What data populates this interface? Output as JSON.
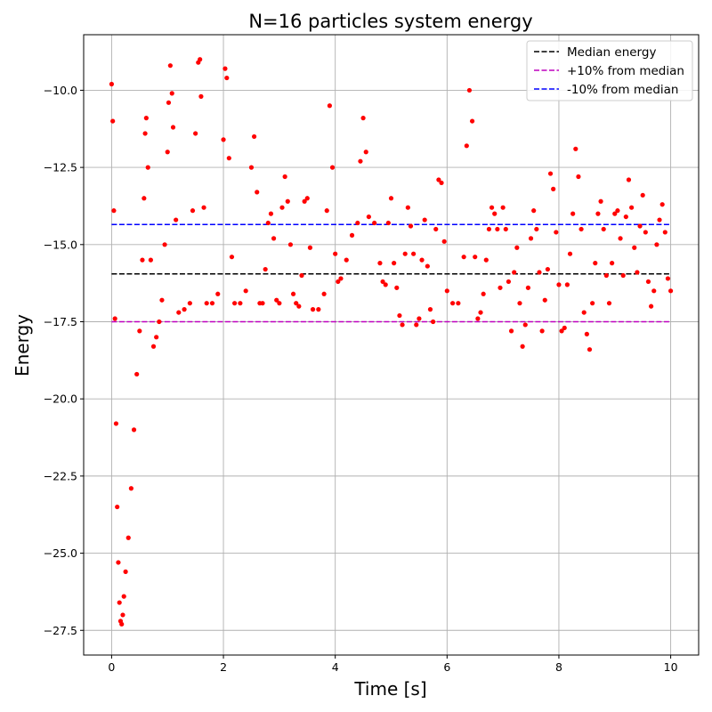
{
  "chart_data": {
    "type": "scatter",
    "title": "N=16 particles system energy",
    "xlabel": "Time [s]",
    "ylabel": "Energy",
    "xlim": [
      -0.5,
      10.5
    ],
    "ylim": [
      -28.3,
      -8.2
    ],
    "xticks": [
      0,
      2,
      4,
      6,
      8,
      10
    ],
    "yticks": [
      -27.5,
      -25.0,
      -22.5,
      -20.0,
      -17.5,
      -15.0,
      -12.5,
      -10.0
    ],
    "xtick_labels": [
      "0",
      "2",
      "4",
      "6",
      "8",
      "10"
    ],
    "ytick_labels": [
      "−27.5",
      "−25.0",
      "−22.5",
      "−20.0",
      "−17.5",
      "−15.0",
      "−12.5",
      "−10.0"
    ],
    "grid": true,
    "legend_position": "top-right",
    "points_color": "#ff0000",
    "series": [
      {
        "name": "",
        "kind": "points",
        "color": "#ff0000",
        "x": [
          0.0,
          0.02,
          0.04,
          0.06,
          0.08,
          0.1,
          0.12,
          0.14,
          0.16,
          0.18,
          0.2,
          0.22,
          0.25,
          0.3,
          0.35,
          0.4,
          0.45,
          0.5,
          0.55,
          0.58,
          0.6,
          0.62,
          0.65,
          0.7,
          0.75,
          0.8,
          0.85,
          0.9,
          0.95,
          1.0,
          1.02,
          1.05,
          1.08,
          1.1,
          1.15,
          1.2,
          1.3,
          1.4,
          1.45,
          1.5,
          1.55,
          1.58,
          1.6,
          1.65,
          1.7,
          1.8,
          1.9,
          2.0,
          2.03,
          2.06,
          2.1,
          2.15,
          2.2,
          2.3,
          2.4,
          2.5,
          2.55,
          2.6,
          2.65,
          2.7,
          2.75,
          2.8,
          2.85,
          2.9,
          2.95,
          3.0,
          3.05,
          3.1,
          3.15,
          3.2,
          3.25,
          3.3,
          3.35,
          3.4,
          3.45,
          3.5,
          3.55,
          3.6,
          3.7,
          3.8,
          3.85,
          3.9,
          3.95,
          4.0,
          4.05,
          4.1,
          4.2,
          4.3,
          4.4,
          4.45,
          4.5,
          4.55,
          4.6,
          4.7,
          4.8,
          4.85,
          4.9,
          4.95,
          5.0,
          5.05,
          5.1,
          5.15,
          5.2,
          5.25,
          5.3,
          5.35,
          5.4,
          5.45,
          5.5,
          5.55,
          5.6,
          5.65,
          5.7,
          5.75,
          5.8,
          5.85,
          5.9,
          5.95,
          6.0,
          6.1,
          6.2,
          6.3,
          6.35,
          6.4,
          6.45,
          6.5,
          6.55,
          6.6,
          6.65,
          6.7,
          6.75,
          6.8,
          6.85,
          6.9,
          6.95,
          7.0,
          7.05,
          7.1,
          7.15,
          7.2,
          7.25,
          7.3,
          7.35,
          7.4,
          7.45,
          7.5,
          7.55,
          7.6,
          7.65,
          7.7,
          7.75,
          7.8,
          7.85,
          7.9,
          7.95,
          8.0,
          8.05,
          8.1,
          8.15,
          8.2,
          8.25,
          8.3,
          8.35,
          8.4,
          8.45,
          8.5,
          8.55,
          8.6,
          8.65,
          8.7,
          8.75,
          8.8,
          8.85,
          8.9,
          8.95,
          9.0,
          9.05,
          9.1,
          9.15,
          9.2,
          9.25,
          9.3,
          9.35,
          9.4,
          9.45,
          9.5,
          9.55,
          9.6,
          9.65,
          9.7,
          9.75,
          9.8,
          9.85,
          9.9,
          9.95,
          10.0
        ],
        "y": [
          -9.8,
          -11.0,
          -13.9,
          -17.4,
          -20.8,
          -23.5,
          -25.3,
          -26.6,
          -27.2,
          -27.3,
          -27.0,
          -26.4,
          -25.6,
          -24.5,
          -22.9,
          -21.0,
          -19.2,
          -17.8,
          -15.5,
          -13.5,
          -11.4,
          -10.9,
          -12.5,
          -15.5,
          -18.3,
          -18.0,
          -17.5,
          -16.8,
          -15.0,
          -12.0,
          -10.4,
          -9.2,
          -10.1,
          -11.2,
          -14.2,
          -17.2,
          -17.1,
          -16.9,
          -13.9,
          -11.4,
          -9.1,
          -9.0,
          -10.2,
          -13.8,
          -16.9,
          -16.9,
          -16.6,
          -11.6,
          -9.3,
          -9.6,
          -12.2,
          -15.4,
          -16.9,
          -16.9,
          -16.5,
          -12.5,
          -11.5,
          -13.3,
          -16.9,
          -16.9,
          -15.8,
          -14.3,
          -14.0,
          -14.8,
          -16.8,
          -16.9,
          -13.8,
          -12.8,
          -13.6,
          -15.0,
          -16.6,
          -16.9,
          -17.0,
          -16.0,
          -13.6,
          -13.5,
          -15.1,
          -17.1,
          -17.1,
          -16.6,
          -13.9,
          -10.5,
          -12.5,
          -15.3,
          -16.2,
          -16.1,
          -15.5,
          -14.7,
          -14.3,
          -12.3,
          -10.9,
          -12.0,
          -14.1,
          -14.3,
          -15.6,
          -16.2,
          -16.3,
          -14.3,
          -13.5,
          -15.6,
          -16.4,
          -17.3,
          -17.6,
          -15.3,
          -13.8,
          -14.4,
          -15.3,
          -17.6,
          -17.4,
          -15.5,
          -14.2,
          -15.7,
          -17.1,
          -17.5,
          -14.5,
          -12.9,
          -13.0,
          -14.9,
          -16.5,
          -16.9,
          -16.9,
          -15.4,
          -11.8,
          -10.0,
          -11.0,
          -15.4,
          -17.4,
          -17.2,
          -16.6,
          -15.5,
          -14.5,
          -13.8,
          -14.0,
          -14.5,
          -16.4,
          -13.8,
          -14.5,
          -16.2,
          -17.8,
          -15.9,
          -15.1,
          -16.9,
          -18.3,
          -17.6,
          -16.4,
          -14.8,
          -13.9,
          -14.5,
          -15.9,
          -17.8,
          -16.8,
          -15.8,
          -12.7,
          -13.2,
          -14.6,
          -16.3,
          -17.8,
          -17.7,
          -16.3,
          -15.3,
          -14.0,
          -11.9,
          -12.8,
          -14.5,
          -17.2,
          -17.9,
          -18.4,
          -16.9,
          -15.6,
          -14.0,
          -13.6,
          -14.5,
          -16.0,
          -16.9,
          -15.6,
          -14.0,
          -13.9,
          -14.8,
          -16.0,
          -14.1,
          -12.9,
          -13.8,
          -15.1,
          -15.9,
          -14.4,
          -13.4,
          -14.6,
          -16.2,
          -17.0,
          -16.5,
          -15.0,
          -14.2,
          -13.7,
          -14.6,
          -16.1,
          -16.5
        ]
      },
      {
        "name": "Median energy",
        "kind": "hline",
        "y": -15.95,
        "color": "#000000",
        "xrange": [
          0,
          10
        ]
      },
      {
        "name": "+10% from median",
        "kind": "hline",
        "y": -17.5,
        "color": "#bf00bf",
        "xrange": [
          0,
          10
        ]
      },
      {
        "name": "-10% from median",
        "kind": "hline",
        "y": -14.35,
        "color": "#0000ff",
        "xrange": [
          0,
          10
        ]
      }
    ]
  }
}
